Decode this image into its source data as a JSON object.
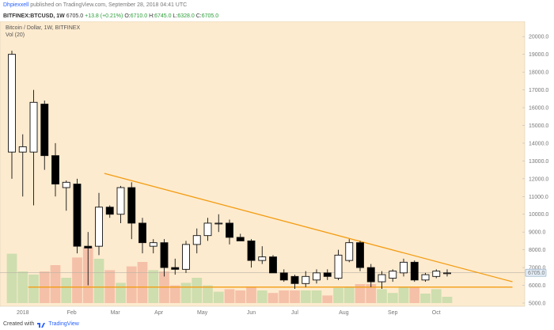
{
  "header": {
    "author": "Dhpiexxell",
    "published_text": "published on TradingView.com, September 28, 2018 04:41 UTC"
  },
  "ohlc_bar": {
    "symbol": "BITFINEX:BTCUSD, 1W",
    "price": "6705.0",
    "change": "+13.8 (+0.21%)",
    "o_label": "O:",
    "o": "6710.0",
    "h_label": "H:",
    "h": "6745.0",
    "l_label": "L:",
    "l": "6328.0",
    "c_label": "C:",
    "c": "6705.0"
  },
  "footer": {
    "created_with": "Created with",
    "brand": "TradingView"
  },
  "colors": {
    "background": "#fdebcf",
    "bull_body": "#ffffff",
    "bear_body": "#000000",
    "trendline": "#f39c12",
    "vol_up": "#c6dca8",
    "vol_down": "#f3b9a1",
    "price_label_bg": "#e3eef8"
  },
  "chart_data": {
    "type": "candlestick",
    "title": "Bitcoin / Dollar, 1W, BITFINEX",
    "subtitle": "Vol (20)",
    "ylim": [
      5000,
      20500
    ],
    "y_ticks": [
      20000,
      19000,
      18000,
      17000,
      16000,
      15000,
      14000,
      13000,
      12000,
      11000,
      10000,
      9000,
      8000,
      7000,
      6000,
      5000
    ],
    "y_tick_labels": [
      "20000.0",
      "19000.0",
      "18000.0",
      "17000.0",
      "16000.0",
      "15000.0",
      "14000.0",
      "13000.0",
      "12000.0",
      "11000.0",
      "10000.0",
      "9000.0",
      "8000.0",
      "7000.0",
      "6000.0",
      "5000.0"
    ],
    "x_labels": [
      {
        "week": 1,
        "label": "2018"
      },
      {
        "week": 5.5,
        "label": "Feb"
      },
      {
        "week": 9.5,
        "label": "Mar"
      },
      {
        "week": 13.5,
        "label": "Apr"
      },
      {
        "week": 17.5,
        "label": "May"
      },
      {
        "week": 22,
        "label": "Jun"
      },
      {
        "week": 26,
        "label": "Jul"
      },
      {
        "week": 30.5,
        "label": "Aug"
      },
      {
        "week": 35,
        "label": "Sep"
      },
      {
        "week": 39,
        "label": "Oct"
      }
    ],
    "last_price": "6705.0",
    "last_price_value": 6705,
    "candles": [
      {
        "o": 13500,
        "h": 19200,
        "l": 12000,
        "c": 19000,
        "v": 0.78
      },
      {
        "o": 13500,
        "h": 14500,
        "l": 11000,
        "c": 13800,
        "v": 0.5
      },
      {
        "o": 13500,
        "h": 17000,
        "l": 10500,
        "c": 16300,
        "v": 0.45
      },
      {
        "o": 16200,
        "h": 16400,
        "l": 12500,
        "c": 13300,
        "v": 0.5
      },
      {
        "o": 13300,
        "h": 14000,
        "l": 11000,
        "c": 11700,
        "v": 0.6
      },
      {
        "o": 11500,
        "h": 11900,
        "l": 10200,
        "c": 11800,
        "v": 0.4
      },
      {
        "o": 11700,
        "h": 12000,
        "l": 7800,
        "c": 8200,
        "v": 0.72
      },
      {
        "o": 8200,
        "h": 9000,
        "l": 6000,
        "c": 8100,
        "v": 0.88
      },
      {
        "o": 8200,
        "h": 11200,
        "l": 7700,
        "c": 10400,
        "v": 0.7
      },
      {
        "o": 10400,
        "h": 10500,
        "l": 9800,
        "c": 10000,
        "v": 0.52
      },
      {
        "o": 10000,
        "h": 11600,
        "l": 9500,
        "c": 11500,
        "v": 0.32
      },
      {
        "o": 11500,
        "h": 11800,
        "l": 8600,
        "c": 9500,
        "v": 0.58
      },
      {
        "o": 9500,
        "h": 9800,
        "l": 7800,
        "c": 8400,
        "v": 0.65
      },
      {
        "o": 8200,
        "h": 8600,
        "l": 7800,
        "c": 8400,
        "v": 0.52
      },
      {
        "o": 8400,
        "h": 8600,
        "l": 6500,
        "c": 7000,
        "v": 0.5
      },
      {
        "o": 7000,
        "h": 7500,
        "l": 6600,
        "c": 6900,
        "v": 0.28
      },
      {
        "o": 6900,
        "h": 8500,
        "l": 6700,
        "c": 8300,
        "v": 0.32
      },
      {
        "o": 8300,
        "h": 9200,
        "l": 7800,
        "c": 8800,
        "v": 0.4
      },
      {
        "o": 8800,
        "h": 9800,
        "l": 8500,
        "c": 9500,
        "v": 0.28
      },
      {
        "o": 9500,
        "h": 10000,
        "l": 9000,
        "c": 9500,
        "v": 0.18
      },
      {
        "o": 9500,
        "h": 9700,
        "l": 8300,
        "c": 8700,
        "v": 0.22
      },
      {
        "o": 8700,
        "h": 8900,
        "l": 8500,
        "c": 8500,
        "v": 0.2
      },
      {
        "o": 8500,
        "h": 8600,
        "l": 7000,
        "c": 7400,
        "v": 0.26
      },
      {
        "o": 7400,
        "h": 8200,
        "l": 7200,
        "c": 7600,
        "v": 0.2
      },
      {
        "o": 7600,
        "h": 7700,
        "l": 6700,
        "c": 6700,
        "v": 0.16
      },
      {
        "o": 6700,
        "h": 6900,
        "l": 6200,
        "c": 6300,
        "v": 0.2
      },
      {
        "o": 6500,
        "h": 6600,
        "l": 5800,
        "c": 6100,
        "v": 0.2
      },
      {
        "o": 6100,
        "h": 6800,
        "l": 5900,
        "c": 6500,
        "v": 0.2
      },
      {
        "o": 6300,
        "h": 6900,
        "l": 6100,
        "c": 6700,
        "v": 0.2
      },
      {
        "o": 6700,
        "h": 6900,
        "l": 6300,
        "c": 6500,
        "v": 0.12
      },
      {
        "o": 6400,
        "h": 8000,
        "l": 6300,
        "c": 7700,
        "v": 0.24
      },
      {
        "o": 7400,
        "h": 8600,
        "l": 7300,
        "c": 8400,
        "v": 0.26
      },
      {
        "o": 8400,
        "h": 8500,
        "l": 6800,
        "c": 7000,
        "v": 0.3
      },
      {
        "o": 7000,
        "h": 7200,
        "l": 5900,
        "c": 6200,
        "v": 0.3
      },
      {
        "o": 6200,
        "h": 6800,
        "l": 5800,
        "c": 6600,
        "v": 0.22
      },
      {
        "o": 6400,
        "h": 6900,
        "l": 6200,
        "c": 6800,
        "v": 0.16
      },
      {
        "o": 6700,
        "h": 7500,
        "l": 6500,
        "c": 7300,
        "v": 0.26
      },
      {
        "o": 7300,
        "h": 7400,
        "l": 6200,
        "c": 6300,
        "v": 0.26
      },
      {
        "o": 6300,
        "h": 6700,
        "l": 6200,
        "c": 6600,
        "v": 0.15
      },
      {
        "o": 6500,
        "h": 6900,
        "l": 6400,
        "c": 6800,
        "v": 0.22
      },
      {
        "o": 6700,
        "h": 6900,
        "l": 6500,
        "c": 6700,
        "v": 0.1
      }
    ],
    "trendline": {
      "x1": 8.5,
      "y1": 12300,
      "x2": 46,
      "y2": 6200
    },
    "support_line": {
      "x1": 1.5,
      "y1": 5900,
      "x2": 46,
      "y2": 5900
    },
    "current_price_line": 6705
  }
}
